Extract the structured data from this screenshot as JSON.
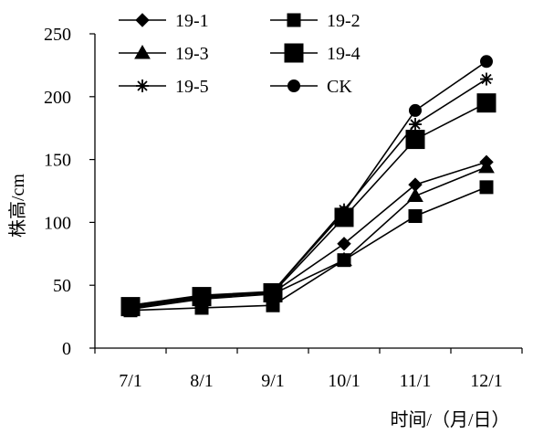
{
  "chart_data": {
    "type": "line",
    "title": "",
    "xlabel": "时间/（月/日）",
    "ylabel": "株高/cm",
    "categories": [
      "7/1",
      "8/1",
      "9/1",
      "10/1",
      "11/1",
      "12/1"
    ],
    "ylim": [
      0,
      250
    ],
    "yticks": [
      0,
      50,
      100,
      150,
      200,
      250
    ],
    "grid": false,
    "legend_position": "top-left",
    "series": [
      {
        "name": "19-1",
        "marker": "diamond",
        "values": [
          32,
          40,
          44,
          83,
          130,
          148
        ]
      },
      {
        "name": "19-2",
        "marker": "square-small",
        "values": [
          30,
          32,
          34,
          70,
          105,
          128
        ]
      },
      {
        "name": "19-3",
        "marker": "triangle",
        "values": [
          31,
          39,
          43,
          70,
          121,
          144
        ]
      },
      {
        "name": "19-4",
        "marker": "square-large",
        "values": [
          33,
          41,
          44,
          104,
          166,
          195
        ]
      },
      {
        "name": "19-5",
        "marker": "asterisk",
        "values": [
          34,
          41,
          45,
          110,
          178,
          214
        ]
      },
      {
        "name": "CK",
        "marker": "circle",
        "values": [
          34,
          42,
          45,
          108,
          189,
          228
        ]
      }
    ],
    "colors": {
      "line": "#000000",
      "marker": "#000000"
    }
  }
}
